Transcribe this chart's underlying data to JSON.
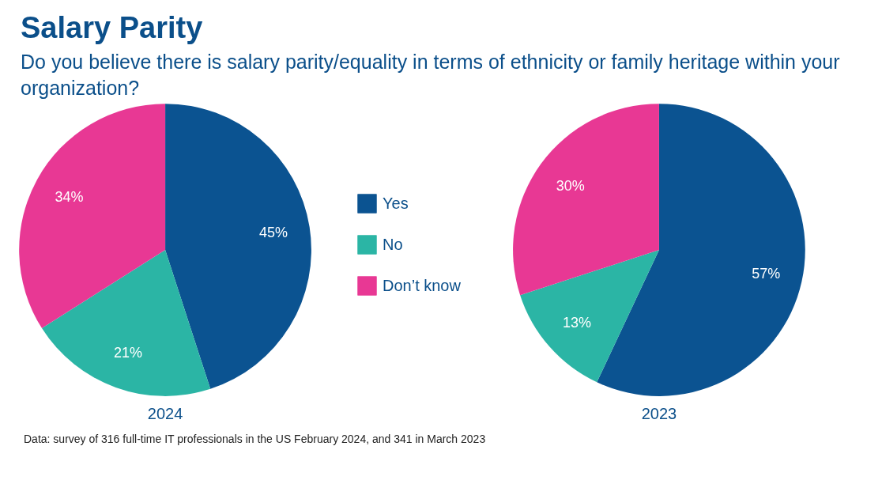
{
  "chart_data": {
    "type": "pie",
    "title": "Salary Parity",
    "subtitle": "Do you believe there is salary parity/equality in terms of ethnicity or family heritage within your organization?",
    "categories": [
      "Yes",
      "No",
      "Don’t know"
    ],
    "colors": [
      "#0b5391",
      "#2bb5a5",
      "#e83894"
    ],
    "legend": "right",
    "series": [
      {
        "name": "2024",
        "values": [
          45,
          21,
          34
        ],
        "value_labels": [
          "45%",
          "21%",
          "34%"
        ]
      },
      {
        "name": "2023",
        "values": [
          57,
          13,
          30
        ],
        "value_labels": [
          "57%",
          "13%",
          "30%"
        ]
      }
    ],
    "annotations": [
      "Data: survey of 316 full-time IT professionals in the US February 2024, and 341 in March 2023"
    ]
  }
}
